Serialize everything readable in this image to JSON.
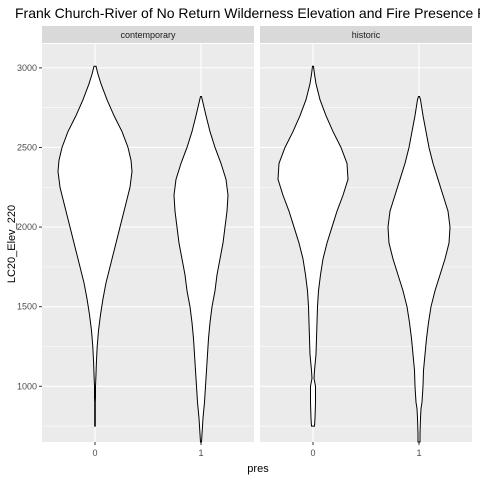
{
  "chart_data": {
    "type": "violin",
    "title": "Frank Church-River of No Return Wilderness Elevation and Fire Presence Re",
    "xlabel": "pres",
    "ylabel": "LC20_Elev_220",
    "categories": [
      "0",
      "1"
    ],
    "yticks": [
      1000,
      1500,
      2000,
      2500,
      3000
    ],
    "ylim": [
      650,
      3150
    ],
    "grid": true,
    "background": "#ebebeb",
    "grid_color": "#ffffff",
    "strip_color": "#d9d9d9",
    "fill": "#ffffff",
    "outline": "#000000",
    "panels": [
      {
        "label": "contemporary",
        "violins": [
          {
            "category": "0",
            "profile": [
              [
                750,
                0.3
              ],
              [
                900,
                0.3
              ],
              [
                930,
                0.5
              ],
              [
                1000,
                0.5
              ],
              [
                1060,
                0.9
              ],
              [
                1150,
                1.4
              ],
              [
                1250,
                2.2
              ],
              [
                1350,
                3.5
              ],
              [
                1450,
                5.5
              ],
              [
                1550,
                8
              ],
              [
                1650,
                11
              ],
              [
                1750,
                15
              ],
              [
                1850,
                19
              ],
              [
                1950,
                23
              ],
              [
                2050,
                27
              ],
              [
                2150,
                31
              ],
              [
                2250,
                35
              ],
              [
                2350,
                37
              ],
              [
                2420,
                36
              ],
              [
                2500,
                33
              ],
              [
                2600,
                27
              ],
              [
                2700,
                19
              ],
              [
                2800,
                12
              ],
              [
                2900,
                6
              ],
              [
                2960,
                3
              ],
              [
                3010,
                1
              ]
            ]
          },
          {
            "category": "1",
            "profile": [
              [
                650,
                0.5
              ],
              [
                700,
                1
              ],
              [
                800,
                2
              ],
              [
                900,
                3.5
              ],
              [
                1000,
                4.5
              ],
              [
                1100,
                5.5
              ],
              [
                1200,
                6.5
              ],
              [
                1300,
                7.5
              ],
              [
                1400,
                9
              ],
              [
                1500,
                11
              ],
              [
                1600,
                14
              ],
              [
                1700,
                16
              ],
              [
                1800,
                19
              ],
              [
                1900,
                22
              ],
              [
                2000,
                24
              ],
              [
                2100,
                26
              ],
              [
                2200,
                27
              ],
              [
                2300,
                25
              ],
              [
                2400,
                20
              ],
              [
                2500,
                14
              ],
              [
                2600,
                9
              ],
              [
                2700,
                5
              ],
              [
                2780,
                2
              ],
              [
                2820,
                0.5
              ]
            ]
          }
        ]
      },
      {
        "label": "historic",
        "violins": [
          {
            "category": "0",
            "profile": [
              [
                750,
                1.5
              ],
              [
                800,
                2
              ],
              [
                900,
                2.5
              ],
              [
                1000,
                2.5
              ],
              [
                1050,
                1
              ],
              [
                1100,
                1.5
              ],
              [
                1200,
                3
              ],
              [
                1300,
                3.5
              ],
              [
                1400,
                4
              ],
              [
                1500,
                4.5
              ],
              [
                1600,
                5.5
              ],
              [
                1700,
                7.5
              ],
              [
                1800,
                10
              ],
              [
                1900,
                14
              ],
              [
                2000,
                19
              ],
              [
                2100,
                24
              ],
              [
                2200,
                30
              ],
              [
                2300,
                35
              ],
              [
                2400,
                34
              ],
              [
                2500,
                28
              ],
              [
                2600,
                20
              ],
              [
                2700,
                13
              ],
              [
                2800,
                7
              ],
              [
                2900,
                3
              ],
              [
                2960,
                1.5
              ],
              [
                3010,
                0.5
              ]
            ]
          },
          {
            "category": "1",
            "profile": [
              [
                650,
                1
              ],
              [
                700,
                1
              ],
              [
                800,
                1.5
              ],
              [
                860,
                2
              ],
              [
                900,
                3
              ],
              [
                1000,
                4
              ],
              [
                1100,
                4.5
              ],
              [
                1200,
                6
              ],
              [
                1300,
                7.5
              ],
              [
                1400,
                9.5
              ],
              [
                1500,
                12
              ],
              [
                1600,
                16
              ],
              [
                1700,
                21
              ],
              [
                1800,
                26
              ],
              [
                1900,
                30
              ],
              [
                2000,
                31
              ],
              [
                2100,
                29
              ],
              [
                2200,
                24
              ],
              [
                2300,
                19
              ],
              [
                2400,
                14
              ],
              [
                2500,
                10
              ],
              [
                2600,
                7
              ],
              [
                2700,
                4
              ],
              [
                2800,
                1.5
              ],
              [
                2820,
                0.5
              ]
            ]
          }
        ]
      }
    ]
  }
}
